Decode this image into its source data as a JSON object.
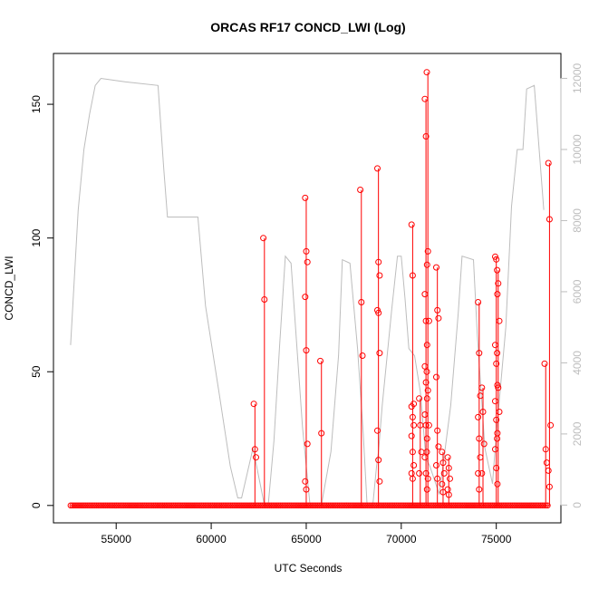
{
  "chart_data": {
    "type": "line",
    "title": "ORCAS RF17 CONCD_LWI (Log)",
    "xlabel": "UTC Seconds",
    "ylabel": "CONCD_LWI",
    "xlim": [
      51700,
      78400
    ],
    "ylim": [
      -6.5,
      169
    ],
    "y2lim": [
      -500,
      12700
    ],
    "x_ticks": [
      55000,
      60000,
      65000,
      70000,
      75000
    ],
    "y_ticks": [
      0,
      50,
      100,
      150
    ],
    "y2_ticks": [
      0,
      2000,
      4000,
      6000,
      8000,
      10000,
      12000
    ],
    "colors": {
      "primary": "#ff0000",
      "secondary": "#bdbdbd",
      "axis": "#000000"
    },
    "series": [
      {
        "axis": "left",
        "style": "line+points",
        "color": "#ff0000",
        "x_range": [
          52600,
          77800
        ],
        "baseline": 0,
        "spikes": [
          {
            "x": 62300,
            "values": [
              38,
              21,
              18
            ]
          },
          {
            "x": 62800,
            "values": [
              100,
              77
            ]
          },
          {
            "x": 65000,
            "values": [
              115,
              95,
              91,
              78,
              58,
              23,
              9,
              6
            ]
          },
          {
            "x": 65800,
            "values": [
              54,
              27
            ]
          },
          {
            "x": 67900,
            "values": [
              118,
              76,
              56
            ]
          },
          {
            "x": 68800,
            "values": [
              126,
              91,
              86,
              73,
              72,
              57,
              28,
              17,
              9
            ]
          },
          {
            "x": 70600,
            "values": [
              105,
              86,
              38,
              37,
              33,
              30,
              26,
              20,
              15,
              12,
              10
            ]
          },
          {
            "x": 71000,
            "values": [
              40,
              30,
              20,
              12
            ]
          },
          {
            "x": 71300,
            "values": [
              152,
              138,
              90,
              79,
              69,
              60,
              52,
              46,
              40,
              34,
              30,
              25,
              18,
              12,
              6
            ]
          },
          {
            "x": 71400,
            "values": [
              162,
              95,
              69,
              50,
              43,
              30,
              20,
              10
            ]
          },
          {
            "x": 71900,
            "values": [
              89,
              73,
              70,
              48,
              28,
              22,
              15,
              10
            ]
          },
          {
            "x": 72200,
            "values": [
              20,
              16,
              12,
              8,
              5
            ]
          },
          {
            "x": 72500,
            "values": [
              18,
              14,
              10,
              6,
              4
            ]
          },
          {
            "x": 74100,
            "values": [
              76,
              57,
              41,
              33,
              25,
              18,
              12,
              6
            ]
          },
          {
            "x": 74300,
            "values": [
              44,
              35,
              23,
              12
            ]
          },
          {
            "x": 75000,
            "values": [
              93,
              92,
              79,
              60,
              53,
              45,
              39,
              32,
              27,
              21,
              14,
              8
            ]
          },
          {
            "x": 75100,
            "values": [
              88,
              83,
              69,
              57,
              44,
              35,
              25
            ]
          },
          {
            "x": 77600,
            "values": [
              53,
              21,
              16
            ]
          },
          {
            "x": 77800,
            "values": [
              128,
              107,
              30,
              13,
              7
            ]
          }
        ]
      },
      {
        "axis": "right",
        "style": "line",
        "color": "#bdbdbd",
        "x": [
          52600,
          53000,
          53300,
          53600,
          53900,
          54200,
          55500,
          57200,
          57500,
          57700,
          59300,
          59700,
          60400,
          61000,
          61400,
          61600,
          62200,
          62800,
          63000,
          63300,
          63600,
          63900,
          64200,
          64500,
          64800,
          65200,
          65800,
          66300,
          66700,
          66900,
          67300,
          67700,
          68000,
          68200,
          68500,
          68700,
          68800,
          69000,
          69500,
          69800,
          70000,
          70200,
          70400,
          70700,
          71000,
          71300,
          71500,
          72000,
          72600,
          73000,
          73200,
          73800,
          74000,
          74200,
          74400,
          74800,
          75000,
          75500,
          75800,
          76100,
          76400,
          76600,
          77000,
          77500
        ],
        "y": [
          4500,
          8300,
          10000,
          11000,
          11800,
          12000,
          11900,
          11800,
          9500,
          8100,
          8100,
          5600,
          3200,
          1100,
          200,
          200,
          1600,
          0,
          0,
          1800,
          4500,
          7000,
          6800,
          4500,
          2200,
          0,
          0,
          1500,
          4200,
          6900,
          6800,
          4400,
          2000,
          0,
          0,
          1100,
          1500,
          2800,
          5500,
          7000,
          7000,
          5800,
          4400,
          4200,
          3200,
          1300,
          1100,
          300,
          2800,
          5400,
          7000,
          6900,
          4800,
          3200,
          1600,
          600,
          2000,
          5000,
          8400,
          10000,
          10000,
          11700,
          11800,
          8300
        ]
      }
    ]
  }
}
